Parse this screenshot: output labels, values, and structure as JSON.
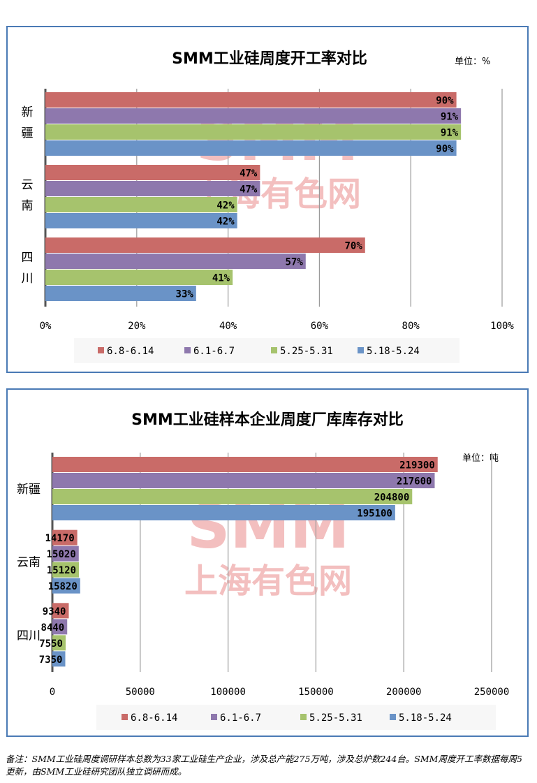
{
  "colors": {
    "s0": "#c96b68",
    "s1": "#8e78ad",
    "s2": "#a6c36d",
    "s3": "#6a93c7",
    "border": "#4a7ab5"
  },
  "watermark": {
    "line1": "SMM",
    "line2": "上海有色网"
  },
  "chart_data": [
    {
      "type": "bar",
      "orientation": "horizontal",
      "title": "SMM工业硅周度开工率对比",
      "unit_label": "单位：%",
      "categories_display": [
        "新\n疆",
        "云\n南",
        "四\n川"
      ],
      "categories": [
        "新疆",
        "云南",
        "四川"
      ],
      "xlim": [
        0,
        100
      ],
      "xticks": [
        "0%",
        "20%",
        "40%",
        "60%",
        "80%",
        "100%"
      ],
      "xtick_values": [
        0,
        20,
        40,
        60,
        80,
        100
      ],
      "grid": true,
      "legend_position": "bottom",
      "series": [
        {
          "name": "6.8-6.14",
          "values": [
            90,
            47,
            70
          ],
          "labels": [
            "90%",
            "47%",
            "70%"
          ]
        },
        {
          "name": "6.1-6.7",
          "values": [
            91,
            47,
            57
          ],
          "labels": [
            "91%",
            "47%",
            "57%"
          ]
        },
        {
          "name": "5.25-5.31",
          "values": [
            91,
            42,
            41
          ],
          "labels": [
            "91%",
            "42%",
            "41%"
          ]
        },
        {
          "name": "5.18-5.24",
          "values": [
            90,
            42,
            33
          ],
          "labels": [
            "90%",
            "42%",
            "33%"
          ]
        }
      ]
    },
    {
      "type": "bar",
      "orientation": "horizontal",
      "title": "SMM工业硅样本企业周度厂库库存对比",
      "unit_label": "单位：吨",
      "categories": [
        "新疆",
        "云南",
        "四川"
      ],
      "xlim": [
        0,
        250000
      ],
      "xticks": [
        "0",
        "50000",
        "100000",
        "150000",
        "200000",
        "250000"
      ],
      "xtick_values": [
        0,
        50000,
        100000,
        150000,
        200000,
        250000
      ],
      "grid": true,
      "legend_position": "bottom",
      "series": [
        {
          "name": "6.8-6.14",
          "values": [
            219300,
            14170,
            9340
          ],
          "labels": [
            "219300",
            "14170",
            "9340"
          ]
        },
        {
          "name": "6.1-6.7",
          "values": [
            217600,
            15020,
            8440
          ],
          "labels": [
            "217600",
            "15020",
            "8440"
          ]
        },
        {
          "name": "5.25-5.31",
          "values": [
            204800,
            15120,
            7550
          ],
          "labels": [
            "204800",
            "15120",
            "7550"
          ]
        },
        {
          "name": "5.18-5.24",
          "values": [
            195100,
            15820,
            7350
          ],
          "labels": [
            "195100",
            "15820",
            "7350"
          ]
        }
      ]
    }
  ],
  "footnote": "备注：SMM工业硅周度调研样本总数为33家工业硅生产企业，涉及总产能275万吨，涉及总炉数244台。SMM周度开工率数据每周5更新，由SMM工业硅研究团队独立调研而成。"
}
